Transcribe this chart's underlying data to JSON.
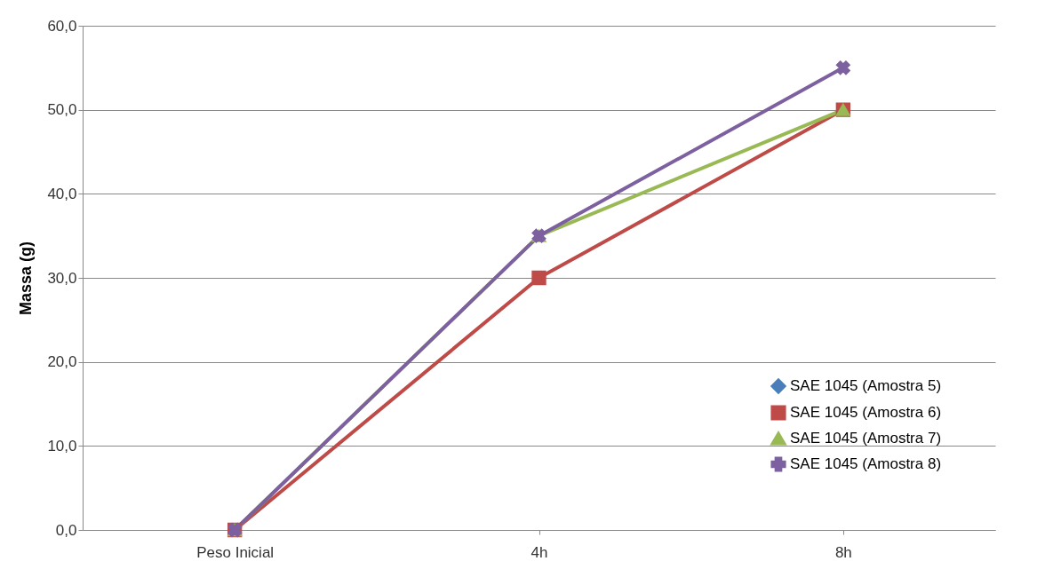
{
  "chart_data": {
    "type": "line",
    "ylabel": "Massa (g)",
    "categories": [
      "Peso Inicial",
      "4h",
      "8h"
    ],
    "series": [
      {
        "name": "SAE 1045 (Amostra 5)",
        "color": "#4a7ebb",
        "marker": "diamond",
        "values": [
          null,
          null,
          null
        ]
      },
      {
        "name": "SAE 1045 (Amostra 6)",
        "color": "#be4b48",
        "marker": "square",
        "values": [
          0,
          30,
          50
        ]
      },
      {
        "name": "SAE 1045 (Amostra 7)",
        "color": "#98b954",
        "marker": "triangle",
        "values": [
          0,
          35,
          50
        ]
      },
      {
        "name": "SAE 1045 (Amostra 8)",
        "color": "#7d60a0",
        "marker": "cross",
        "values": [
          0,
          35,
          55
        ]
      }
    ],
    "ylim": [
      0,
      60
    ],
    "yticks": [
      {
        "value": 0,
        "label": "0,0"
      },
      {
        "value": 10,
        "label": "10,0"
      },
      {
        "value": 20,
        "label": "20,0"
      },
      {
        "value": 30,
        "label": "30,0"
      },
      {
        "value": 40,
        "label": "40,0"
      },
      {
        "value": 50,
        "label": "50,0"
      },
      {
        "value": 60,
        "label": "60,0"
      }
    ],
    "grid": "y",
    "legend": "bottom right",
    "line_style": "solid"
  }
}
